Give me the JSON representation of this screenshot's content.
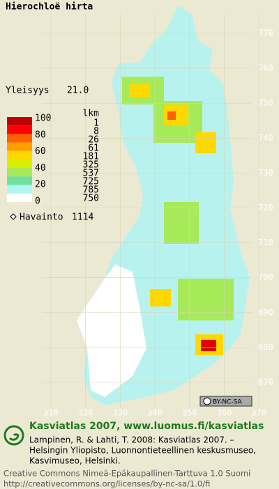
{
  "title": "Hierochloë hirta",
  "frequency": {
    "label": "Yleisyys",
    "value": "21.0"
  },
  "legend": {
    "scale": [
      "100",
      "80",
      "60",
      "40",
      "20",
      "0"
    ],
    "count_header": "lkm",
    "counts": [
      "1",
      "8",
      "26",
      "61",
      "181",
      "325",
      "537",
      "725",
      "785",
      "750"
    ]
  },
  "observations": {
    "label": "Havainto",
    "value": "1114"
  },
  "axes": {
    "y_labels": [
      "770",
      "760",
      "750",
      "740",
      "730",
      "720",
      "710",
      "700",
      "690",
      "680",
      "670"
    ],
    "x_labels": [
      "310",
      "320",
      "330",
      "340",
      "350",
      "360",
      "370"
    ]
  },
  "license_badge": "BY-NC-SA",
  "footer": {
    "heading": "Kasviatlas 2007, www.luomus.fi/kasviatlas",
    "citation": [
      "Lampinen, R. & Lahti, T. 2008: Kasviatlas 2007. –",
      "Helsingin Yliopisto, Luonnontieteellinen keskusmuseo,",
      "Kasvimuseo, Helsinki."
    ],
    "license": [
      "Creative Commons Nimeä-Epäkaupallinen-Tarttuva 1.0 Suomi",
      "http://creativecommons.org/licenses/by-nc-sa/1.0/fi"
    ]
  }
}
